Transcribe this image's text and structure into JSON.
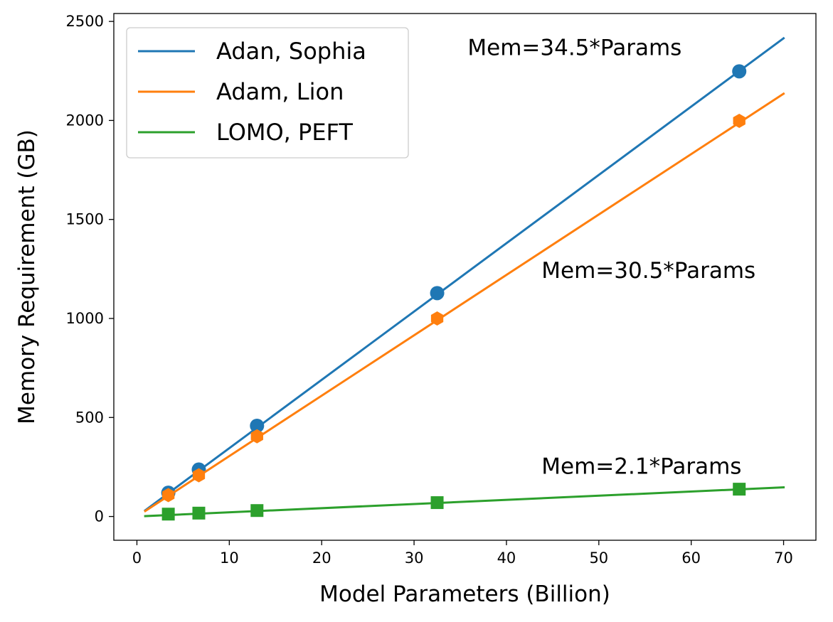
{
  "chart_data": {
    "type": "line",
    "title": "",
    "xlabel": "Model Parameters (Billion)",
    "ylabel": "Memory Requirement (GB)",
    "xlim": [
      -2.5,
      73.5
    ],
    "ylim": [
      -120,
      2540
    ],
    "xticks": [
      0,
      10,
      20,
      30,
      40,
      50,
      60,
      70
    ],
    "yticks": [
      0,
      500,
      1000,
      1500,
      2000,
      2500
    ],
    "grid": false,
    "legend_position": "top-left",
    "series": [
      {
        "name": "Adan, Sophia",
        "color": "#1f77b4",
        "marker": "circle",
        "slope": 34.5,
        "fit_x": [
          0.9,
          70
        ],
        "points": [
          {
            "x": 3.4,
            "y": 120
          },
          {
            "x": 6.7,
            "y": 237
          },
          {
            "x": 13,
            "y": 458
          },
          {
            "x": 32.5,
            "y": 1128
          },
          {
            "x": 65.2,
            "y": 2248
          }
        ]
      },
      {
        "name": "Adam, Lion",
        "color": "#ff7f0e",
        "marker": "hexagon",
        "slope": 30.5,
        "fit_x": [
          0.9,
          70
        ],
        "points": [
          {
            "x": 3.4,
            "y": 108
          },
          {
            "x": 6.7,
            "y": 208
          },
          {
            "x": 13,
            "y": 405
          },
          {
            "x": 32.5,
            "y": 1000
          },
          {
            "x": 65.2,
            "y": 1998
          }
        ]
      },
      {
        "name": "LOMO, PEFT",
        "color": "#2ca02c",
        "marker": "square",
        "slope": 2.1,
        "fit_x": [
          0.9,
          70
        ],
        "points": [
          {
            "x": 3.4,
            "y": 12
          },
          {
            "x": 6.7,
            "y": 17
          },
          {
            "x": 13,
            "y": 30
          },
          {
            "x": 32.5,
            "y": 70
          },
          {
            "x": 65.2,
            "y": 138
          }
        ]
      }
    ],
    "annotations": [
      {
        "text": "Mem=34.5*Params",
        "x": 35.8,
        "y": 2330
      },
      {
        "text": "Mem=30.5*Params",
        "x": 43.8,
        "y": 1205
      },
      {
        "text": "Mem=2.1*Params",
        "x": 43.8,
        "y": 215
      }
    ]
  }
}
